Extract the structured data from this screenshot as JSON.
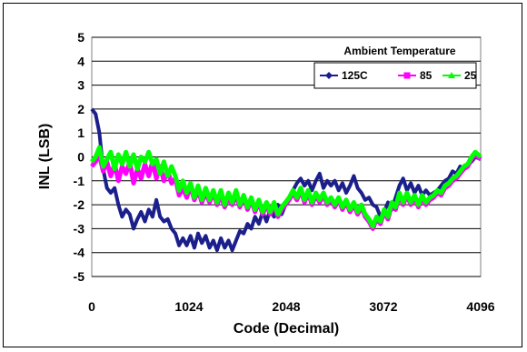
{
  "chart_data": {
    "type": "line",
    "title": "",
    "xlabel": "Code (Decimal)",
    "ylabel": "INL (LSB)",
    "xlim": [
      0,
      4096
    ],
    "ylim": [
      -5,
      5
    ],
    "x_ticks": [
      0,
      1024,
      2048,
      3072,
      4096
    ],
    "y_ticks": [
      5,
      4,
      3,
      2,
      1,
      0,
      -1,
      -2,
      -3,
      -4,
      -5
    ],
    "grid": "horizontal",
    "legend": {
      "title": "Ambient Temperature",
      "placement": "top-right"
    },
    "series": [
      {
        "name": "125C",
        "color": "#1a1f8c",
        "marker": "diamond",
        "points": [
          [
            0,
            2.0
          ],
          [
            40,
            1.8
          ],
          [
            80,
            1.0
          ],
          [
            120,
            -0.5
          ],
          [
            160,
            -1.3
          ],
          [
            200,
            -1.5
          ],
          [
            240,
            -1.3
          ],
          [
            280,
            -2.0
          ],
          [
            320,
            -2.5
          ],
          [
            360,
            -2.2
          ],
          [
            400,
            -2.4
          ],
          [
            440,
            -3.0
          ],
          [
            480,
            -2.6
          ],
          [
            520,
            -2.3
          ],
          [
            560,
            -2.7
          ],
          [
            600,
            -2.2
          ],
          [
            640,
            -2.5
          ],
          [
            680,
            -1.8
          ],
          [
            720,
            -2.5
          ],
          [
            760,
            -2.7
          ],
          [
            800,
            -2.6
          ],
          [
            840,
            -3.0
          ],
          [
            880,
            -3.2
          ],
          [
            920,
            -3.7
          ],
          [
            960,
            -3.4
          ],
          [
            1000,
            -3.7
          ],
          [
            1040,
            -3.3
          ],
          [
            1080,
            -3.8
          ],
          [
            1120,
            -3.2
          ],
          [
            1160,
            -3.6
          ],
          [
            1200,
            -3.3
          ],
          [
            1240,
            -3.8
          ],
          [
            1280,
            -3.5
          ],
          [
            1320,
            -3.9
          ],
          [
            1360,
            -3.4
          ],
          [
            1400,
            -3.8
          ],
          [
            1440,
            -3.5
          ],
          [
            1480,
            -3.9
          ],
          [
            1520,
            -3.5
          ],
          [
            1560,
            -3.1
          ],
          [
            1600,
            -3.2
          ],
          [
            1640,
            -2.8
          ],
          [
            1680,
            -3.0
          ],
          [
            1720,
            -2.5
          ],
          [
            1760,
            -2.8
          ],
          [
            1800,
            -2.3
          ],
          [
            1840,
            -2.7
          ],
          [
            1880,
            -2.2
          ],
          [
            1920,
            -2.5
          ],
          [
            1960,
            -2.0
          ],
          [
            2000,
            -2.4
          ],
          [
            2040,
            -2.0
          ],
          [
            2080,
            -1.7
          ],
          [
            2120,
            -1.4
          ],
          [
            2160,
            -1.1
          ],
          [
            2200,
            -0.9
          ],
          [
            2240,
            -1.2
          ],
          [
            2280,
            -1.0
          ],
          [
            2320,
            -1.4
          ],
          [
            2360,
            -1.0
          ],
          [
            2400,
            -0.7
          ],
          [
            2440,
            -1.3
          ],
          [
            2480,
            -1.0
          ],
          [
            2520,
            -1.2
          ],
          [
            2560,
            -1.0
          ],
          [
            2600,
            -1.4
          ],
          [
            2640,
            -1.1
          ],
          [
            2680,
            -1.5
          ],
          [
            2720,
            -1.2
          ],
          [
            2760,
            -0.8
          ],
          [
            2800,
            -1.3
          ],
          [
            2840,
            -1.5
          ],
          [
            2880,
            -1.8
          ],
          [
            2920,
            -1.7
          ],
          [
            2960,
            -2.0
          ],
          [
            3000,
            -2.1
          ],
          [
            3040,
            -2.5
          ],
          [
            3080,
            -2.3
          ],
          [
            3120,
            -1.9
          ],
          [
            3160,
            -2.2
          ],
          [
            3200,
            -1.7
          ],
          [
            3240,
            -1.2
          ],
          [
            3280,
            -0.9
          ],
          [
            3320,
            -1.4
          ],
          [
            3360,
            -1.1
          ],
          [
            3400,
            -1.5
          ],
          [
            3440,
            -1.2
          ],
          [
            3480,
            -1.6
          ],
          [
            3520,
            -1.4
          ],
          [
            3560,
            -1.6
          ],
          [
            3600,
            -1.5
          ],
          [
            3640,
            -1.4
          ],
          [
            3680,
            -1.2
          ],
          [
            3720,
            -1.0
          ],
          [
            3760,
            -0.9
          ],
          [
            3800,
            -0.6
          ],
          [
            3840,
            -0.7
          ],
          [
            3880,
            -0.4
          ],
          [
            3920,
            -0.5
          ],
          [
            3960,
            -0.3
          ],
          [
            4000,
            -0.2
          ],
          [
            4040,
            0.0
          ],
          [
            4096,
            -0.1
          ]
        ]
      },
      {
        "name": "85",
        "color": "#ff00ff",
        "marker": "square",
        "points": [
          [
            0,
            -0.4
          ],
          [
            40,
            -0.2
          ],
          [
            80,
            0.1
          ],
          [
            120,
            -0.6
          ],
          [
            160,
            -0.2
          ],
          [
            200,
            -0.8
          ],
          [
            240,
            -0.3
          ],
          [
            280,
            -1.0
          ],
          [
            320,
            -0.4
          ],
          [
            360,
            -0.7
          ],
          [
            400,
            -0.2
          ],
          [
            440,
            -1.1
          ],
          [
            480,
            -0.5
          ],
          [
            520,
            -0.9
          ],
          [
            560,
            -0.3
          ],
          [
            600,
            -0.8
          ],
          [
            640,
            -0.2
          ],
          [
            680,
            -0.9
          ],
          [
            720,
            -0.4
          ],
          [
            760,
            -1.0
          ],
          [
            800,
            -0.6
          ],
          [
            840,
            -1.1
          ],
          [
            880,
            -0.9
          ],
          [
            920,
            -1.6
          ],
          [
            960,
            -1.3
          ],
          [
            1000,
            -1.7
          ],
          [
            1040,
            -1.2
          ],
          [
            1080,
            -1.8
          ],
          [
            1120,
            -1.4
          ],
          [
            1160,
            -1.9
          ],
          [
            1200,
            -1.5
          ],
          [
            1240,
            -1.9
          ],
          [
            1280,
            -1.5
          ],
          [
            1320,
            -2.0
          ],
          [
            1360,
            -1.6
          ],
          [
            1400,
            -2.1
          ],
          [
            1440,
            -1.7
          ],
          [
            1480,
            -2.0
          ],
          [
            1520,
            -1.6
          ],
          [
            1560,
            -2.1
          ],
          [
            1600,
            -1.7
          ],
          [
            1640,
            -2.2
          ],
          [
            1680,
            -1.8
          ],
          [
            1720,
            -2.3
          ],
          [
            1760,
            -1.9
          ],
          [
            1800,
            -2.4
          ],
          [
            1840,
            -2.0
          ],
          [
            1880,
            -2.4
          ],
          [
            1920,
            -2.0
          ],
          [
            1960,
            -2.5
          ],
          [
            2000,
            -2.2
          ],
          [
            2040,
            -2.0
          ],
          [
            2080,
            -1.8
          ],
          [
            2120,
            -1.5
          ],
          [
            2160,
            -1.8
          ],
          [
            2200,
            -1.4
          ],
          [
            2240,
            -1.9
          ],
          [
            2280,
            -1.5
          ],
          [
            2320,
            -2.0
          ],
          [
            2360,
            -1.6
          ],
          [
            2400,
            -1.9
          ],
          [
            2440,
            -1.6
          ],
          [
            2480,
            -2.0
          ],
          [
            2520,
            -1.8
          ],
          [
            2560,
            -2.1
          ],
          [
            2600,
            -1.8
          ],
          [
            2640,
            -2.2
          ],
          [
            2680,
            -1.9
          ],
          [
            2720,
            -2.3
          ],
          [
            2760,
            -2.0
          ],
          [
            2800,
            -2.4
          ],
          [
            2840,
            -2.1
          ],
          [
            2880,
            -2.5
          ],
          [
            2920,
            -2.7
          ],
          [
            2960,
            -3.0
          ],
          [
            3000,
            -2.6
          ],
          [
            3040,
            -2.8
          ],
          [
            3080,
            -2.3
          ],
          [
            3120,
            -2.6
          ],
          [
            3160,
            -2.0
          ],
          [
            3200,
            -2.2
          ],
          [
            3240,
            -1.6
          ],
          [
            3280,
            -2.0
          ],
          [
            3320,
            -1.6
          ],
          [
            3360,
            -2.0
          ],
          [
            3400,
            -1.7
          ],
          [
            3440,
            -2.1
          ],
          [
            3480,
            -1.7
          ],
          [
            3520,
            -2.0
          ],
          [
            3560,
            -1.8
          ],
          [
            3600,
            -1.7
          ],
          [
            3640,
            -1.5
          ],
          [
            3680,
            -1.6
          ],
          [
            3720,
            -1.3
          ],
          [
            3760,
            -1.2
          ],
          [
            3800,
            -1.0
          ],
          [
            3840,
            -0.9
          ],
          [
            3880,
            -0.7
          ],
          [
            3920,
            -0.5
          ],
          [
            3960,
            -0.4
          ],
          [
            4000,
            -0.1
          ],
          [
            4040,
            0.1
          ],
          [
            4096,
            -0.1
          ]
        ]
      },
      {
        "name": "25",
        "color": "#00ff00",
        "marker": "triangle",
        "points": [
          [
            0,
            -0.2
          ],
          [
            40,
            0.0
          ],
          [
            80,
            0.4
          ],
          [
            120,
            -0.4
          ],
          [
            160,
            -0.1
          ],
          [
            200,
            0.2
          ],
          [
            240,
            -0.5
          ],
          [
            280,
            0.1
          ],
          [
            320,
            -0.3
          ],
          [
            360,
            0.2
          ],
          [
            400,
            -0.4
          ],
          [
            440,
            0.1
          ],
          [
            480,
            -0.5
          ],
          [
            520,
            0.0
          ],
          [
            560,
            -0.2
          ],
          [
            600,
            0.2
          ],
          [
            640,
            -0.3
          ],
          [
            680,
            -0.1
          ],
          [
            720,
            -0.7
          ],
          [
            760,
            -0.2
          ],
          [
            800,
            -0.8
          ],
          [
            840,
            -0.4
          ],
          [
            880,
            -0.8
          ],
          [
            920,
            -1.4
          ],
          [
            960,
            -1.0
          ],
          [
            1000,
            -1.5
          ],
          [
            1040,
            -1.1
          ],
          [
            1080,
            -1.7
          ],
          [
            1120,
            -1.2
          ],
          [
            1160,
            -1.8
          ],
          [
            1200,
            -1.3
          ],
          [
            1240,
            -1.8
          ],
          [
            1280,
            -1.4
          ],
          [
            1320,
            -1.9
          ],
          [
            1360,
            -1.4
          ],
          [
            1400,
            -2.0
          ],
          [
            1440,
            -1.5
          ],
          [
            1480,
            -1.9
          ],
          [
            1520,
            -1.4
          ],
          [
            1560,
            -2.0
          ],
          [
            1600,
            -1.6
          ],
          [
            1640,
            -2.1
          ],
          [
            1680,
            -1.7
          ],
          [
            1720,
            -2.2
          ],
          [
            1760,
            -1.8
          ],
          [
            1800,
            -2.3
          ],
          [
            1840,
            -1.9
          ],
          [
            1880,
            -2.3
          ],
          [
            1920,
            -1.9
          ],
          [
            1960,
            -2.4
          ],
          [
            2000,
            -2.1
          ],
          [
            2040,
            -1.9
          ],
          [
            2080,
            -1.7
          ],
          [
            2120,
            -1.4
          ],
          [
            2160,
            -1.7
          ],
          [
            2200,
            -1.3
          ],
          [
            2240,
            -1.8
          ],
          [
            2280,
            -1.4
          ],
          [
            2320,
            -1.9
          ],
          [
            2360,
            -1.5
          ],
          [
            2400,
            -1.8
          ],
          [
            2440,
            -1.5
          ],
          [
            2480,
            -1.9
          ],
          [
            2520,
            -1.7
          ],
          [
            2560,
            -2.0
          ],
          [
            2600,
            -1.7
          ],
          [
            2640,
            -2.1
          ],
          [
            2680,
            -1.8
          ],
          [
            2720,
            -2.2
          ],
          [
            2760,
            -1.9
          ],
          [
            2800,
            -2.3
          ],
          [
            2840,
            -2.0
          ],
          [
            2880,
            -2.4
          ],
          [
            2920,
            -2.6
          ],
          [
            2960,
            -2.9
          ],
          [
            3000,
            -2.5
          ],
          [
            3040,
            -2.7
          ],
          [
            3080,
            -2.2
          ],
          [
            3120,
            -2.5
          ],
          [
            3160,
            -1.9
          ],
          [
            3200,
            -2.1
          ],
          [
            3240,
            -1.5
          ],
          [
            3280,
            -1.9
          ],
          [
            3320,
            -1.5
          ],
          [
            3360,
            -1.9
          ],
          [
            3400,
            -1.6
          ],
          [
            3440,
            -2.0
          ],
          [
            3480,
            -1.6
          ],
          [
            3520,
            -1.9
          ],
          [
            3560,
            -1.7
          ],
          [
            3600,
            -1.6
          ],
          [
            3640,
            -1.4
          ],
          [
            3680,
            -1.5
          ],
          [
            3720,
            -1.2
          ],
          [
            3760,
            -1.1
          ],
          [
            3800,
            -0.9
          ],
          [
            3840,
            -0.8
          ],
          [
            3880,
            -0.6
          ],
          [
            3920,
            -0.4
          ],
          [
            3960,
            -0.3
          ],
          [
            4000,
            0.0
          ],
          [
            4040,
            0.2
          ],
          [
            4096,
            0.0
          ]
        ]
      }
    ]
  }
}
